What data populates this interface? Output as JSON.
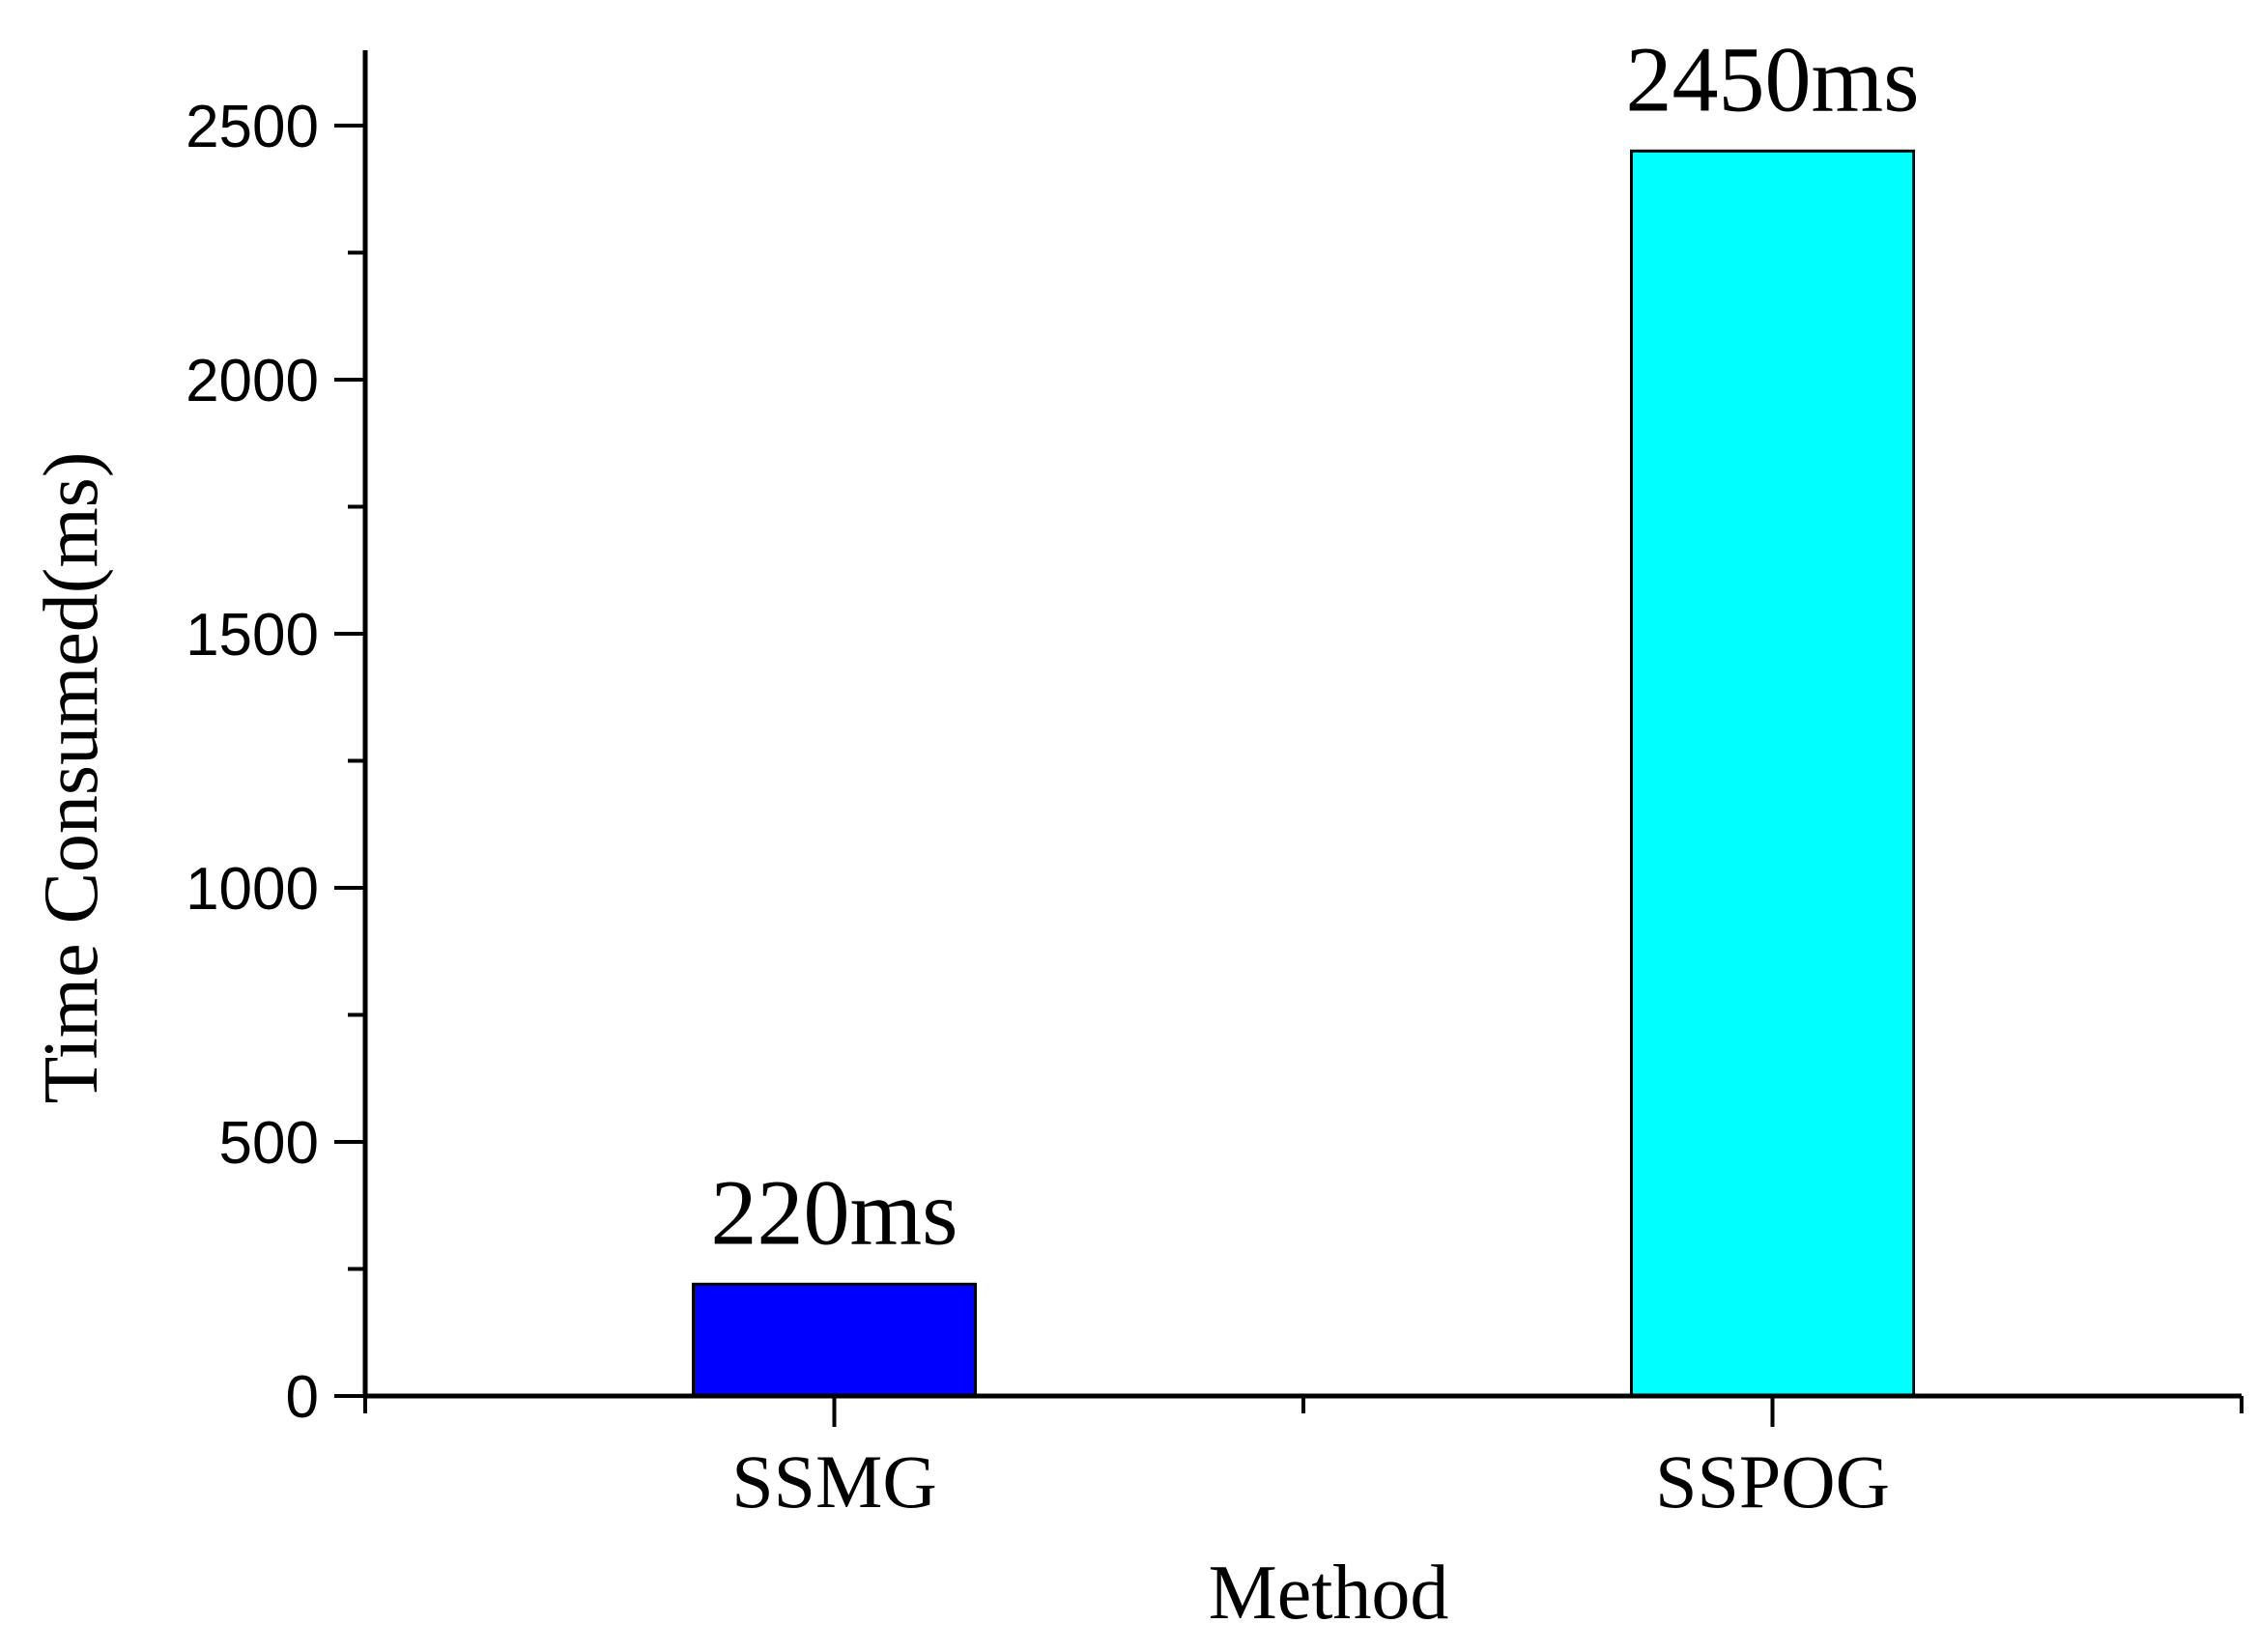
{
  "chart_data": {
    "type": "bar",
    "title": "",
    "xlabel": "Method",
    "ylabel": "Time Consumed(ms)",
    "categories": [
      "SSMG",
      "SSPOG"
    ],
    "values": [
      220,
      2450
    ],
    "data_labels": [
      "220ms",
      "2450ms"
    ],
    "colors": [
      "#0000ff",
      "#00ffff"
    ],
    "ylim": [
      0,
      2650
    ],
    "yticks": [
      0,
      500,
      1000,
      1500,
      2000,
      2500
    ],
    "yticks_minor": [
      250,
      750,
      1250,
      1750,
      2250
    ],
    "grid": false,
    "legend": "none"
  }
}
